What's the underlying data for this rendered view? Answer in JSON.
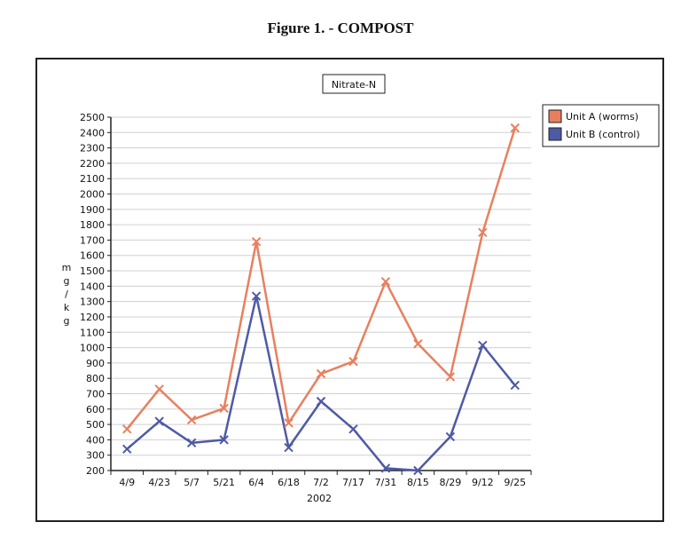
{
  "figure_title": "Figure 1. - COMPOST",
  "chart_data": {
    "type": "line",
    "title": "Nitrate-N",
    "xlabel": "2002",
    "ylabel": "mg/kg",
    "ylabel_letters": [
      "m",
      "g",
      "/",
      "k",
      "g"
    ],
    "categories": [
      "4/9",
      "4/23",
      "5/7",
      "5/21",
      "6/4",
      "6/18",
      "7/2",
      "7/17",
      "7/31",
      "8/15",
      "8/29",
      "9/12",
      "9/25"
    ],
    "ylim": [
      200,
      2500
    ],
    "yticks": [
      200,
      300,
      400,
      500,
      600,
      700,
      800,
      900,
      1000,
      1100,
      1200,
      1300,
      1400,
      1500,
      1600,
      1700,
      1800,
      1900,
      2000,
      2100,
      2200,
      2300,
      2400,
      2500
    ],
    "grid": true,
    "legend_position": "top-right",
    "series": [
      {
        "name": "Unit A (worms)",
        "color": "#e8805f",
        "values": [
          470,
          730,
          530,
          605,
          1690,
          510,
          830,
          910,
          1430,
          1025,
          810,
          1750,
          2430
        ]
      },
      {
        "name": "Unit B (control)",
        "color": "#4f5aa5",
        "values": [
          340,
          520,
          380,
          400,
          1335,
          350,
          650,
          470,
          215,
          200,
          420,
          1015,
          755
        ]
      }
    ]
  }
}
